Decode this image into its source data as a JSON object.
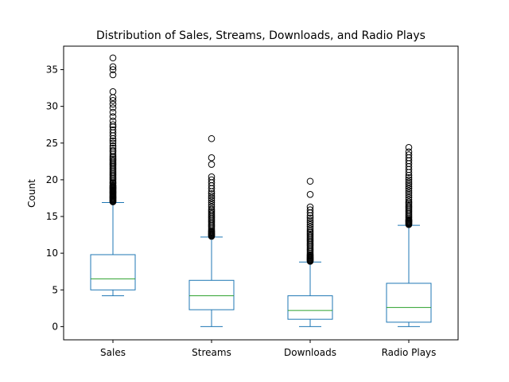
{
  "chart_data": {
    "type": "box",
    "title": "Distribution of Sales, Streams, Downloads, and Radio Plays",
    "xlabel": "",
    "ylabel": "Count",
    "ylim": [
      -1.8,
      38.2
    ],
    "yticks": [
      0,
      5,
      10,
      15,
      20,
      25,
      30,
      35
    ],
    "grid": false,
    "legend": "none",
    "colors": {
      "box": "#1f77b4",
      "median": "#2ca02c",
      "flier": "#000000"
    },
    "categories": [
      "Sales",
      "Streams",
      "Downloads",
      "Radio Plays"
    ],
    "boxes": [
      {
        "name": "Sales",
        "whisker_low": 4.2,
        "q1": 5.0,
        "median": 6.5,
        "q3": 9.8,
        "whisker_high": 16.9,
        "outliers": [
          17.0,
          17.1,
          17.2,
          17.3,
          17.4,
          17.5,
          17.6,
          17.7,
          17.8,
          17.9,
          18.0,
          18.1,
          18.2,
          18.3,
          18.4,
          18.5,
          18.6,
          18.7,
          18.8,
          18.9,
          19.0,
          19.1,
          19.2,
          19.3,
          19.5,
          19.6,
          19.8,
          20.0,
          20.2,
          20.4,
          20.6,
          20.8,
          21.0,
          21.2,
          21.4,
          21.6,
          21.8,
          22.0,
          22.2,
          22.4,
          22.6,
          22.8,
          23.0,
          23.2,
          23.5,
          23.8,
          24.0,
          24.3,
          24.6,
          25.0,
          25.3,
          25.6,
          26.0,
          26.4,
          26.8,
          27.2,
          27.5,
          28.0,
          28.6,
          29.2,
          29.8,
          30.3,
          30.8,
          31.2,
          32.0,
          34.3,
          35.0,
          35.4,
          36.6
        ]
      },
      {
        "name": "Streams",
        "whisker_low": 0.0,
        "q1": 2.3,
        "median": 4.2,
        "q3": 6.3,
        "whisker_high": 12.2,
        "outliers": [
          12.3,
          12.4,
          12.5,
          12.6,
          12.7,
          12.8,
          12.9,
          13.0,
          13.2,
          13.4,
          13.6,
          13.8,
          14.0,
          14.2,
          14.4,
          14.6,
          14.8,
          15.0,
          15.2,
          15.4,
          15.6,
          15.8,
          16.0,
          16.3,
          16.6,
          16.9,
          17.2,
          17.5,
          17.8,
          18.1,
          18.4,
          18.8,
          19.2,
          19.6,
          20.0,
          20.4,
          22.1,
          23.0,
          25.6
        ]
      },
      {
        "name": "Downloads",
        "whisker_low": 0.0,
        "q1": 1.0,
        "median": 2.2,
        "q3": 4.2,
        "whisker_high": 8.8,
        "outliers": [
          8.9,
          9.0,
          9.1,
          9.2,
          9.3,
          9.4,
          9.5,
          9.6,
          9.7,
          9.8,
          10.0,
          10.2,
          10.4,
          10.6,
          10.8,
          11.0,
          11.2,
          11.4,
          11.6,
          11.8,
          12.0,
          12.2,
          12.4,
          12.6,
          12.8,
          13.0,
          13.3,
          13.6,
          13.9,
          14.2,
          14.5,
          14.8,
          15.1,
          15.5,
          15.9,
          16.3,
          18.0,
          19.8
        ]
      },
      {
        "name": "Radio Plays",
        "whisker_low": 0.0,
        "q1": 0.6,
        "median": 2.6,
        "q3": 5.9,
        "whisker_high": 13.8,
        "outliers": [
          13.9,
          14.0,
          14.1,
          14.2,
          14.3,
          14.4,
          14.5,
          14.6,
          14.8,
          15.0,
          15.2,
          15.4,
          15.6,
          15.8,
          16.0,
          16.2,
          16.4,
          16.6,
          16.8,
          17.0,
          17.3,
          17.6,
          17.9,
          18.2,
          18.5,
          18.8,
          19.1,
          19.4,
          19.7,
          20.0,
          20.3,
          20.6,
          21.0,
          21.4,
          21.8,
          22.2,
          22.6,
          23.0,
          23.4,
          23.8,
          24.4
        ]
      }
    ]
  }
}
